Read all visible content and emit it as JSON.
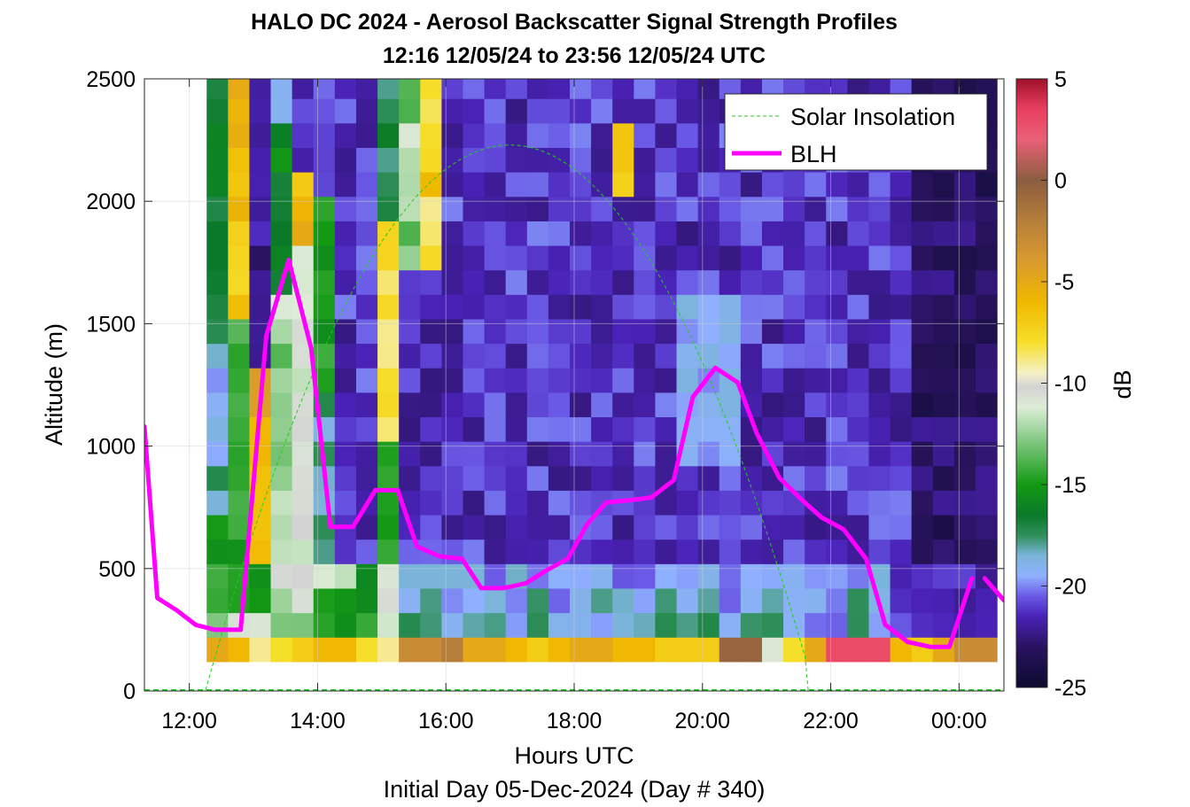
{
  "chart_data": {
    "type": "heatmap",
    "title": "HALO DC 2024 - Aerosol Backscatter Signal Strength Profiles",
    "subtitle": "12:16 12/05/24 to 23:56 12/05/24  UTC",
    "xlabel": "Hours UTC",
    "xlabel2": "Initial Day 05-Dec-2024 (Day # 340)",
    "ylabel": "Altitude (m)",
    "colorbar_label": "dB",
    "xlim": [
      11.3,
      24.7
    ],
    "ylim": [
      0,
      2500
    ],
    "clim": [
      -25,
      5
    ],
    "x_ticks": [
      12,
      14,
      16,
      18,
      20,
      22,
      24
    ],
    "x_tick_labels": [
      "12:00",
      "14:00",
      "16:00",
      "18:00",
      "20:00",
      "22:00",
      "00:00"
    ],
    "y_ticks": [
      0,
      500,
      1000,
      1500,
      2000,
      2500
    ],
    "y_tick_labels": [
      "0",
      "500",
      "1000",
      "1500",
      "2000",
      "2500"
    ],
    "colorbar_ticks": [
      5,
      0,
      -5,
      -10,
      -15,
      -20,
      -25
    ],
    "colorbar_tick_labels": [
      "5",
      "0",
      "-5",
      "-10",
      "-15",
      "-20",
      "-25"
    ],
    "grid": true,
    "legend_position": "top-right",
    "legend": [
      "Solar Insolation",
      "BLH"
    ],
    "heatmap": {
      "x_start": 12.27,
      "x_end": 24.67,
      "dt_hours": 0.333,
      "y_start": 120,
      "y_end": 2500,
      "dy_m": 100,
      "note_values_db": "columns of backscatter in dB, low values (~-22 dB) aloft, enhanced layers near surface"
    },
    "series": [
      {
        "name": "BLH",
        "color": "#ff00ff",
        "segments": [
          [
            [
              11.3,
              1080
            ],
            [
              11.5,
              380
            ],
            [
              11.8,
              330
            ],
            [
              12.1,
              270
            ],
            [
              12.4,
              250
            ],
            [
              12.8,
              250
            ],
            [
              13.2,
              1450
            ],
            [
              13.55,
              1760
            ],
            [
              13.9,
              1400
            ],
            [
              14.2,
              670
            ],
            [
              14.55,
              670
            ],
            [
              14.9,
              820
            ],
            [
              15.25,
              820
            ],
            [
              15.55,
              590
            ],
            [
              15.9,
              550
            ],
            [
              16.25,
              540
            ],
            [
              16.55,
              420
            ],
            [
              16.9,
              420
            ],
            [
              17.25,
              440
            ],
            [
              17.55,
              490
            ],
            [
              17.9,
              540
            ],
            [
              18.2,
              680
            ],
            [
              18.5,
              770
            ],
            [
              18.9,
              780
            ],
            [
              19.2,
              790
            ],
            [
              19.55,
              860
            ],
            [
              19.85,
              1200
            ],
            [
              20.2,
              1320
            ],
            [
              20.55,
              1260
            ],
            [
              20.85,
              1050
            ],
            [
              21.2,
              870
            ],
            [
              21.55,
              780
            ],
            [
              21.85,
              710
            ],
            [
              22.2,
              660
            ],
            [
              22.55,
              540
            ],
            [
              22.85,
              270
            ],
            [
              23.2,
              200
            ],
            [
              23.55,
              180
            ],
            [
              23.85,
              180
            ],
            [
              24.2,
              460
            ]
          ],
          [
            [
              24.4,
              460
            ],
            [
              24.7,
              370
            ]
          ]
        ]
      },
      {
        "name": "Solar Insolation",
        "color": "#22cc22",
        "style": "dashed",
        "peak_hour": 17.0,
        "peak_altitude": 2230,
        "sunrise_hour": 12.25,
        "sunset_hour": 21.65
      }
    ]
  }
}
